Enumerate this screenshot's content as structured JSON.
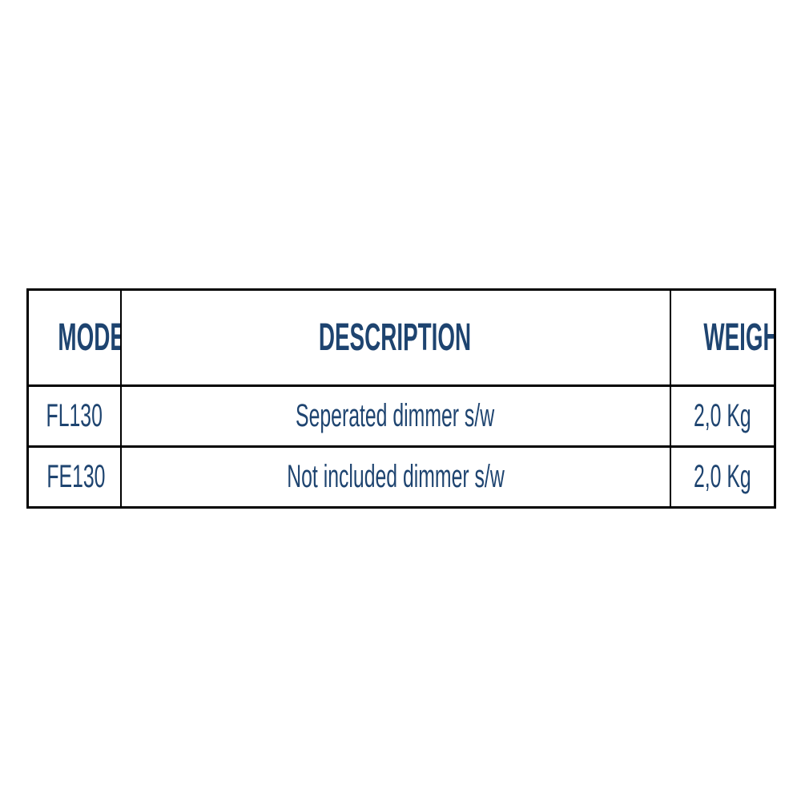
{
  "table": {
    "columns": [
      {
        "label": "MODEL"
      },
      {
        "label": "DESCRIPTION"
      },
      {
        "label": "WEIGHT"
      }
    ],
    "rows": [
      {
        "model": "FL130",
        "description": "Seperated dimmer s/w",
        "weight": "2,0 Kg"
      },
      {
        "model": "FE130",
        "description": "Not included dimmer s/w",
        "weight": "2,0 Kg"
      }
    ],
    "text_color": "#1e4470",
    "border_color": "#000000",
    "background_color": "#ffffff"
  }
}
